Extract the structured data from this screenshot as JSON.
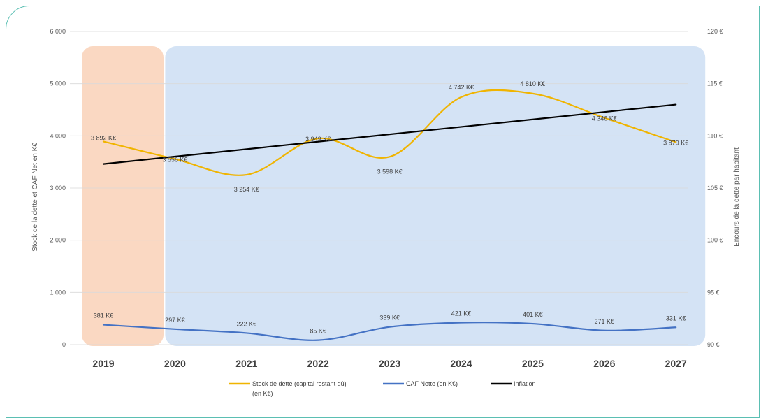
{
  "chart_data": {
    "type": "line",
    "categories": [
      "2019",
      "2020",
      "2021",
      "2022",
      "2023",
      "2024",
      "2025",
      "2026",
      "2027"
    ],
    "y_left": {
      "label": "Stock de la dette et CAF Net en K€",
      "min": 0,
      "max": 6000,
      "ticks": [
        "0",
        "1 000",
        "2 000",
        "3 000",
        "4 000",
        "5 000",
        "6 000"
      ]
    },
    "y_right": {
      "label": "Encours de la dette par habitant",
      "min": 90,
      "max": 120,
      "ticks": [
        "90 €",
        "95 €",
        "100 €",
        "105 €",
        "110 €",
        "115 €",
        "120 €"
      ]
    },
    "grid": true,
    "legend_position": "bottom",
    "series": [
      {
        "name": "Stock de dette (capital restant dû) (en K€)",
        "axis": "left",
        "color": "#f0b400",
        "values": [
          3892,
          3556,
          3254,
          3949,
          3598,
          4742,
          4810,
          4346,
          3879
        ],
        "labels": [
          "3 892 K€",
          "3 556 K€",
          "3 254 K€",
          "3 949 K€",
          "3 598 K€",
          "4 742 K€",
          "4 810 K€",
          "4 346 K€",
          "3 879 K€"
        ]
      },
      {
        "name": "CAF Nette (en K€)",
        "axis": "left",
        "color": "#4472c4",
        "values": [
          381,
          297,
          222,
          85,
          339,
          421,
          401,
          271,
          331
        ],
        "labels": [
          "381 K€",
          "297 K€",
          "222 K€",
          "85 K€",
          "339 K€",
          "421 K€",
          "401 K€",
          "271 K€",
          "331 K€"
        ]
      },
      {
        "name": "Inflation",
        "axis": "right",
        "color": "#000000",
        "values": [
          107.3,
          108.1,
          108.8,
          109.5,
          110.2,
          110.9,
          111.6,
          112.3,
          113.0
        ]
      }
    ],
    "highlight_regions": [
      {
        "from": "2019",
        "to": "2019",
        "color": "#f8cbad"
      },
      {
        "from": "2020",
        "to": "2027",
        "color": "#c5d9f1"
      }
    ],
    "legend_labels": {
      "s0_line1": "Stock de dette (capital restant dû)",
      "s0_line2": "(en K€)",
      "s1": "CAF Nette (en K€)",
      "s2": "Inflation"
    }
  }
}
